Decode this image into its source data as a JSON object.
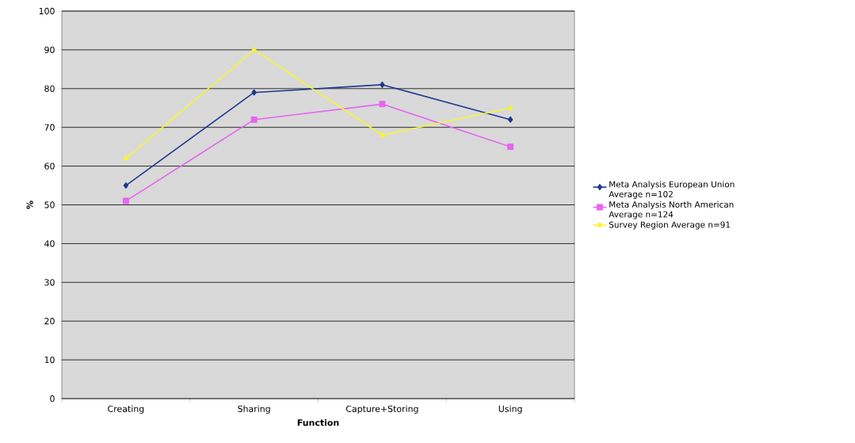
{
  "chart_data": {
    "type": "line",
    "xlabel": "Function",
    "ylabel": "%",
    "categories": [
      "Creating",
      "Sharing",
      "Capture+Storing",
      "Using"
    ],
    "series": [
      {
        "name": "Meta Analysis European Union Average n=102",
        "color": "#1f3a93",
        "marker": "diamond",
        "values": [
          55,
          79,
          81,
          72
        ]
      },
      {
        "name": "Meta Analysis North American Average n=124",
        "color": "#e666f0",
        "marker": "square",
        "values": [
          51,
          72,
          76,
          65
        ]
      },
      {
        "name": "Survey Region Average n=91",
        "color": "#f5f536",
        "marker": "triangle",
        "values": [
          62,
          90,
          68,
          75
        ]
      }
    ],
    "ylim": [
      0,
      100
    ],
    "yticks": [
      0,
      10,
      20,
      30,
      40,
      50,
      60,
      70,
      80,
      90,
      100
    ],
    "grid": "y",
    "legend": "right"
  }
}
